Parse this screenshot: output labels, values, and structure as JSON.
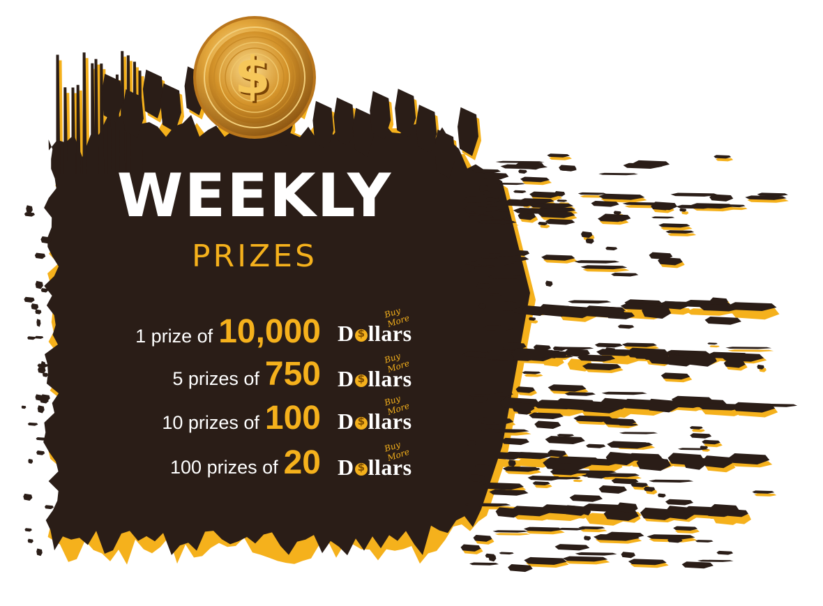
{
  "colors": {
    "ink": "#2a1d17",
    "accent": "#f5b11c",
    "text": "#ffffff",
    "coin_gold": "#d99a2b"
  },
  "icons": {
    "coin": "dollar-coin-icon",
    "logo": "buymore-dollars-logo"
  },
  "banner": {
    "title": "WEEKLY",
    "subtitle": "PRIZES"
  },
  "prizes": [
    {
      "text": "1 prize of",
      "amount": "10,000"
    },
    {
      "text": "5 prizes of",
      "amount": "750"
    },
    {
      "text": "10 prizes of",
      "amount": "100"
    },
    {
      "text": "100 prizes of",
      "amount": "20"
    }
  ],
  "logo": {
    "word_pre": "D",
    "word_post": "llars",
    "tagline": "Buy More"
  }
}
